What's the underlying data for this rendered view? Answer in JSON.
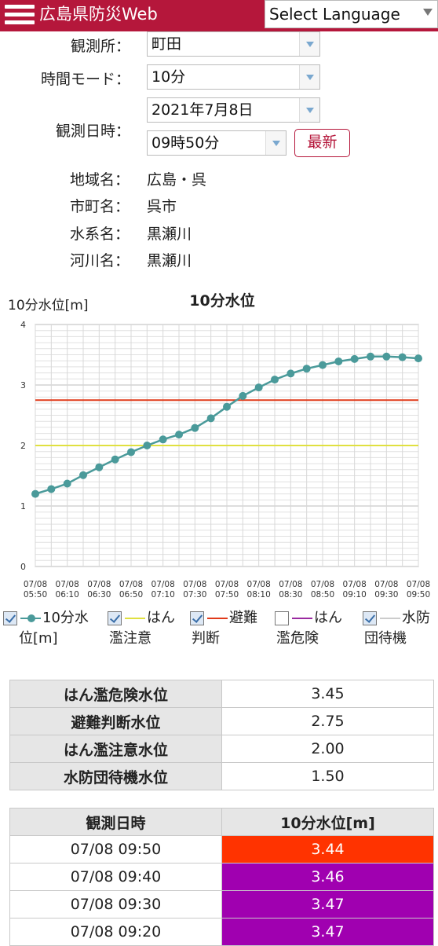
{
  "header": {
    "app_title": "広島県防災Web",
    "language_select": "Select Language"
  },
  "form": {
    "station_label": "観測所：",
    "station_value": "町田",
    "time_mode_label": "時間モード：",
    "time_mode_value": "10分",
    "datetime_label": "観測日時：",
    "date_value": "2021年7月8日",
    "time_value": "09時50分",
    "refresh_label": "最新"
  },
  "info": {
    "region_label": "地域名：",
    "region_value": "広島・呉",
    "city_label": "市町名：",
    "city_value": "呉市",
    "water_system_label": "水系名：",
    "water_system_value": "黒瀬川",
    "river_label": "河川名：",
    "river_value": "黒瀬川"
  },
  "chart_data": {
    "type": "line",
    "title": "10分水位",
    "ylabel": "10分水位[m]",
    "ylim": [
      0,
      4
    ],
    "yticks": [
      "0",
      "1",
      "2",
      "3",
      "4"
    ],
    "xtick_labels": [
      [
        "07/08",
        "05:50"
      ],
      [
        "07/08",
        "06:10"
      ],
      [
        "07/08",
        "06:30"
      ],
      [
        "07/08",
        "06:50"
      ],
      [
        "07/08",
        "07:10"
      ],
      [
        "07/08",
        "07:30"
      ],
      [
        "07/08",
        "07:50"
      ],
      [
        "07/08",
        "08:10"
      ],
      [
        "07/08",
        "08:30"
      ],
      [
        "07/08",
        "08:50"
      ],
      [
        "07/08",
        "09:10"
      ],
      [
        "07/08",
        "09:30"
      ],
      [
        "07/08",
        "09:50"
      ]
    ],
    "series": [
      {
        "name": "10分水位[m]",
        "color": "#4a9a9a",
        "x": [
          "05:50",
          "06:00",
          "06:10",
          "06:20",
          "06:30",
          "06:40",
          "06:50",
          "07:00",
          "07:10",
          "07:20",
          "07:30",
          "07:40",
          "07:50",
          "08:00",
          "08:10",
          "08:20",
          "08:30",
          "08:40",
          "08:50",
          "09:00",
          "09:10",
          "09:20",
          "09:30",
          "09:40",
          "09:50"
        ],
        "values": [
          1.2,
          1.28,
          1.37,
          1.51,
          1.64,
          1.77,
          1.89,
          2.0,
          2.1,
          2.18,
          2.29,
          2.45,
          2.64,
          2.82,
          2.96,
          3.09,
          3.19,
          3.27,
          3.33,
          3.39,
          3.43,
          3.47,
          3.47,
          3.46,
          3.44
        ]
      }
    ],
    "reference_lines": [
      {
        "name": "はん濫注意",
        "value": 2.0,
        "color": "#e0e040",
        "visible": true
      },
      {
        "name": "避難判断",
        "value": 2.75,
        "color": "#e03a1a",
        "visible": true
      },
      {
        "name": "はん濫危険",
        "value": 3.45,
        "color": "#9a2aa0",
        "visible": false
      },
      {
        "name": "水防団待機",
        "value": 1.5,
        "color": "#cccccc",
        "visible": true
      }
    ],
    "legend": [
      {
        "line1": "10分水",
        "line2": "位[m]",
        "color": "#4a9a9a",
        "checked": true
      },
      {
        "line1": "はん",
        "line2": "濫注意",
        "color": "#e0e040",
        "checked": true
      },
      {
        "line1": "避難",
        "line2": "判断",
        "color": "#e03a1a",
        "checked": true
      },
      {
        "line1": "はん",
        "line2": "濫危険",
        "color": "#9a2aa0",
        "checked": false
      },
      {
        "line1": "水防",
        "line2": "団待機",
        "color": "#cccccc",
        "checked": true
      }
    ]
  },
  "thresholds": [
    {
      "label": "はん濫危険水位",
      "value": "3.45"
    },
    {
      "label": "避難判断水位",
      "value": "2.75"
    },
    {
      "label": "はん濫注意水位",
      "value": "2.00"
    },
    {
      "label": "水防団待機水位",
      "value": "1.50"
    }
  ],
  "data_table": {
    "headers": [
      "観測日時",
      "10分水位[m]"
    ],
    "rows": [
      {
        "time": "07/08 09:50",
        "value": "3.44",
        "color": "#ff3300"
      },
      {
        "time": "07/08 09:40",
        "value": "3.46",
        "color": "#a000b0"
      },
      {
        "time": "07/08 09:30",
        "value": "3.47",
        "color": "#a000b0"
      },
      {
        "time": "07/08 09:20",
        "value": "3.47",
        "color": "#a000b0"
      }
    ]
  }
}
